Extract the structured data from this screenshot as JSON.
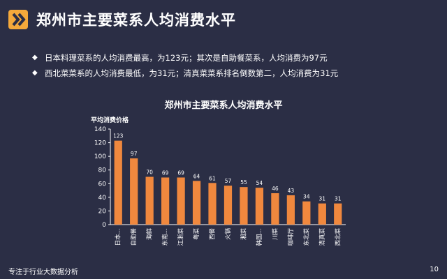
{
  "header": {
    "title": "郑州市主要菜系人均消费水平"
  },
  "bullets": [
    {
      "icon": "diamond-bullet-icon",
      "text": "日本料理菜系的人均消费最高，为123元；其次是自助餐菜系，人均消费为97元"
    },
    {
      "icon": "diamond-bullet-icon",
      "text": "西北菜菜系的人均消费最低，为31元；清真菜菜系排名倒数第二，人均消费为31元"
    }
  ],
  "footer": {
    "left": "专注于行业大数据分析",
    "page": "10"
  },
  "colors": {
    "background": "#2b2e45",
    "accent": "#f5a93b",
    "bar": "#f0883e",
    "text": "#ffffff"
  },
  "chart_data": {
    "type": "bar",
    "title": "郑州市主要菜系人均消费水平",
    "ylabel": "平均消费价格",
    "xlabel": "",
    "categories": [
      "日本…",
      "自助餐",
      "海鲜",
      "东南…",
      "江浙菜",
      "粤菜",
      "西餐",
      "火锅",
      "湘菜",
      "韩国…",
      "川菜",
      "咖啡厅",
      "东北菜",
      "清真菜",
      "西北菜"
    ],
    "values": [
      123,
      97,
      70,
      69,
      69,
      64,
      61,
      57,
      55,
      54,
      46,
      43,
      34,
      31,
      31
    ],
    "ylim": [
      0,
      140
    ],
    "yticks": [
      0,
      20,
      40,
      60,
      80,
      100,
      120,
      140
    ],
    "grid": false,
    "legend": "none"
  }
}
